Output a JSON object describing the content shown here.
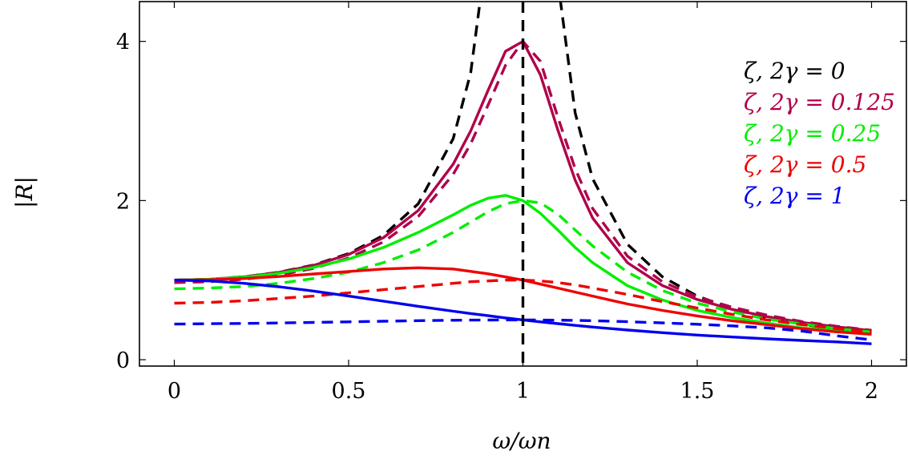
{
  "chart_data": {
    "type": "line",
    "title": "",
    "xlabel": "ω/ωn",
    "ylabel": "|R|",
    "xlim": [
      -0.1,
      2.1
    ],
    "ylim": [
      -0.08,
      4.5
    ],
    "xticks": [
      0,
      0.5,
      1,
      1.5,
      2
    ],
    "xtick_labels": [
      "0",
      "0.5",
      "1",
      "1.5",
      "2"
    ],
    "yticks": [
      0,
      2,
      4
    ],
    "ytick_labels": [
      "0",
      "2",
      "4"
    ],
    "grid": false,
    "legend_position": "right",
    "vertical_marker_x": 1,
    "x": [
      0,
      0.1,
      0.2,
      0.3,
      0.4,
      0.5,
      0.6,
      0.7,
      0.8,
      0.85,
      0.9,
      0.95,
      1.0,
      1.05,
      1.1,
      1.15,
      1.2,
      1.3,
      1.4,
      1.5,
      1.6,
      1.7,
      1.8,
      1.9,
      2.0
    ],
    "series": [
      {
        "name": "ζ, 2γ = 0",
        "color": "#000000",
        "style": "dashed",
        "values": [
          1.0,
          1.01,
          1.042,
          1.099,
          1.19,
          1.333,
          1.563,
          1.961,
          2.778,
          3.604,
          5.263,
          null,
          null,
          null,
          4.762,
          3.101,
          2.273,
          1.449,
          1.042,
          0.8,
          0.641,
          0.529,
          0.446,
          0.383,
          0.333
        ]
      },
      {
        "name": "ζ, 2γ = 0.125",
        "color": "#b0004a",
        "style": "solid",
        "values": [
          1.0,
          1.01,
          1.041,
          1.097,
          1.185,
          1.322,
          1.535,
          1.876,
          2.458,
          2.874,
          3.385,
          3.876,
          4.0,
          3.58,
          2.888,
          2.256,
          1.78,
          1.219,
          0.933,
          0.756,
          0.633,
          0.541,
          0.47,
          0.412,
          0.366
        ]
      },
      {
        "name": "ζ, 2γ = 0.125",
        "color": "#b0004a",
        "style": "dashed",
        "values": [
          0.969,
          0.98,
          1.011,
          1.063,
          1.148,
          1.278,
          1.48,
          1.8,
          2.33,
          2.712,
          3.2,
          3.7,
          4.0,
          3.75,
          3.05,
          2.4,
          1.9,
          1.3,
          0.98,
          0.79,
          0.66,
          0.56,
          0.48,
          0.42,
          0.37
        ]
      },
      {
        "name": "ζ, 2γ = 0.25",
        "color": "#00ee00",
        "style": "solid",
        "values": [
          1.0,
          1.01,
          1.038,
          1.086,
          1.16,
          1.265,
          1.411,
          1.6,
          1.82,
          1.94,
          2.03,
          2.065,
          2.0,
          1.84,
          1.63,
          1.41,
          1.22,
          0.93,
          0.75,
          0.62,
          0.53,
          0.46,
          0.4,
          0.36,
          0.32
        ]
      },
      {
        "name": "ζ, 2γ = 0.25",
        "color": "#00ee00",
        "style": "dashed",
        "values": [
          0.89,
          0.9,
          0.92,
          0.96,
          1.02,
          1.1,
          1.22,
          1.38,
          1.6,
          1.73,
          1.86,
          1.96,
          2.0,
          1.97,
          1.83,
          1.63,
          1.43,
          1.1,
          0.87,
          0.71,
          0.6,
          0.51,
          0.45,
          0.39,
          0.35
        ]
      },
      {
        "name": "ζ, 2γ = 0.5",
        "color": "#ee0000",
        "style": "solid",
        "values": [
          1.0,
          1.005,
          1.02,
          1.045,
          1.078,
          1.109,
          1.14,
          1.155,
          1.14,
          1.11,
          1.08,
          1.04,
          1.0,
          0.95,
          0.9,
          0.85,
          0.8,
          0.7,
          0.62,
          0.55,
          0.49,
          0.44,
          0.39,
          0.35,
          0.32
        ]
      },
      {
        "name": "ζ, 2γ = 0.5",
        "color": "#ee0000",
        "style": "dashed",
        "values": [
          0.71,
          0.72,
          0.74,
          0.77,
          0.8,
          0.84,
          0.88,
          0.92,
          0.96,
          0.98,
          0.99,
          1.0,
          1.0,
          0.99,
          0.97,
          0.94,
          0.9,
          0.82,
          0.73,
          0.65,
          0.57,
          0.5,
          0.44,
          0.39,
          0.35
        ]
      },
      {
        "name": "ζ, 2γ = 1",
        "color": "#0000ee",
        "style": "solid",
        "values": [
          1.0,
          0.99,
          0.96,
          0.917,
          0.862,
          0.8,
          0.735,
          0.671,
          0.61,
          0.58,
          0.553,
          0.525,
          0.5,
          0.476,
          0.453,
          0.431,
          0.41,
          0.373,
          0.34,
          0.31,
          0.285,
          0.262,
          0.242,
          0.224,
          0.2
        ]
      },
      {
        "name": "ζ, 2γ = 1",
        "color": "#0000ee",
        "style": "dashed",
        "values": [
          0.447,
          0.452,
          0.456,
          0.462,
          0.469,
          0.476,
          0.484,
          0.491,
          0.496,
          0.498,
          0.499,
          0.5,
          0.5,
          0.499,
          0.497,
          0.494,
          0.49,
          0.478,
          0.463,
          0.445,
          0.425,
          0.4,
          0.36,
          0.3,
          0.25
        ]
      }
    ],
    "legend": [
      {
        "label": "ζ, 2γ = 0",
        "color": "#000000"
      },
      {
        "label": "ζ, 2γ = 0.125",
        "color": "#b0004a"
      },
      {
        "label": "ζ, 2γ = 0.25",
        "color": "#00ee00"
      },
      {
        "label": "ζ, 2γ = 0.5",
        "color": "#ee0000"
      },
      {
        "label": "ζ, 2γ = 1",
        "color": "#0000ee"
      }
    ]
  }
}
